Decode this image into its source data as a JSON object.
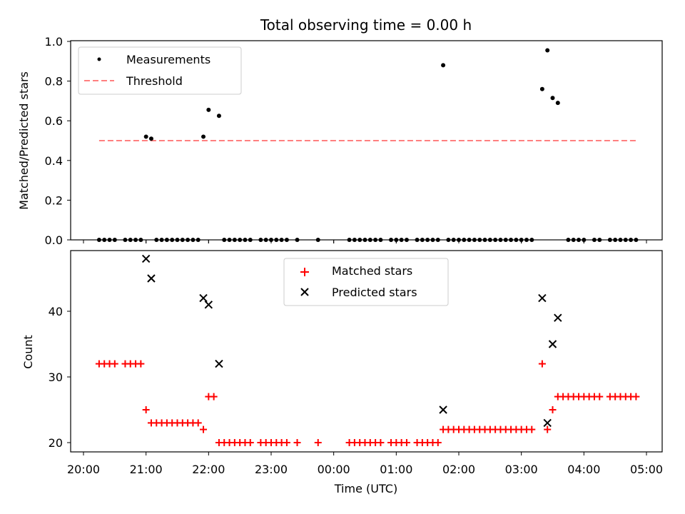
{
  "chart_data": [
    {
      "type": "scatter",
      "title": "Total observing time = 0.00 h",
      "xlabel": "",
      "ylabel": "Matched/Predicted stars",
      "xlim": [
        "20:00",
        "05:00"
      ],
      "ylim": [
        0.0,
        1.0
      ],
      "x_ticks": [
        "20:00",
        "21:00",
        "22:00",
        "23:00",
        "00:00",
        "01:00",
        "02:00",
        "03:00",
        "04:00",
        "05:00"
      ],
      "y_ticks": [
        "0.0",
        "0.2",
        "0.4",
        "0.6",
        "0.8",
        "1.0"
      ],
      "legend": {
        "placement": "top-left",
        "entries": [
          "Measurements",
          "Threshold"
        ]
      },
      "series": [
        {
          "name": "Measurements",
          "color": "#000000",
          "marker": "dot",
          "points": [
            [
              "20:15",
              0
            ],
            [
              "20:20",
              0
            ],
            [
              "20:25",
              0
            ],
            [
              "20:30",
              0
            ],
            [
              "20:40",
              0
            ],
            [
              "20:45",
              0
            ],
            [
              "20:50",
              0
            ],
            [
              "20:55",
              0
            ],
            [
              "21:00",
              0.52
            ],
            [
              "21:05",
              0.51
            ],
            [
              "21:10",
              0
            ],
            [
              "21:15",
              0
            ],
            [
              "21:20",
              0
            ],
            [
              "21:25",
              0
            ],
            [
              "21:30",
              0
            ],
            [
              "21:35",
              0
            ],
            [
              "21:40",
              0
            ],
            [
              "21:45",
              0
            ],
            [
              "21:50",
              0
            ],
            [
              "21:55",
              0.52
            ],
            [
              "22:00",
              0.655
            ],
            [
              "22:10",
              0.625
            ],
            [
              "22:15",
              0
            ],
            [
              "22:20",
              0
            ],
            [
              "22:25",
              0
            ],
            [
              "22:30",
              0
            ],
            [
              "22:35",
              0
            ],
            [
              "22:40",
              0
            ],
            [
              "22:50",
              0
            ],
            [
              "22:55",
              0
            ],
            [
              "23:00",
              0
            ],
            [
              "23:05",
              0
            ],
            [
              "23:10",
              0
            ],
            [
              "23:15",
              0
            ],
            [
              "23:25",
              0
            ],
            [
              "23:45",
              0
            ],
            [
              "00:15",
              0
            ],
            [
              "00:20",
              0
            ],
            [
              "00:25",
              0
            ],
            [
              "00:30",
              0
            ],
            [
              "00:35",
              0
            ],
            [
              "00:40",
              0
            ],
            [
              "00:45",
              0
            ],
            [
              "00:55",
              0
            ],
            [
              "01:00",
              0
            ],
            [
              "01:05",
              0
            ],
            [
              "01:10",
              0
            ],
            [
              "01:20",
              0
            ],
            [
              "01:25",
              0
            ],
            [
              "01:30",
              0
            ],
            [
              "01:35",
              0
            ],
            [
              "01:40",
              0
            ],
            [
              "01:45",
              0.88
            ],
            [
              "01:50",
              0
            ],
            [
              "01:55",
              0
            ],
            [
              "02:00",
              0
            ],
            [
              "02:05",
              0
            ],
            [
              "02:10",
              0
            ],
            [
              "02:15",
              0
            ],
            [
              "02:20",
              0
            ],
            [
              "02:25",
              0
            ],
            [
              "02:30",
              0
            ],
            [
              "02:35",
              0
            ],
            [
              "02:40",
              0
            ],
            [
              "02:45",
              0
            ],
            [
              "02:50",
              0
            ],
            [
              "02:55",
              0
            ],
            [
              "03:00",
              0
            ],
            [
              "03:05",
              0
            ],
            [
              "03:10",
              0
            ],
            [
              "03:20",
              0.76
            ],
            [
              "03:25",
              0.955
            ],
            [
              "03:30",
              0.715
            ],
            [
              "03:35",
              0.69
            ],
            [
              "03:45",
              0
            ],
            [
              "03:50",
              0
            ],
            [
              "03:55",
              0
            ],
            [
              "04:00",
              0
            ],
            [
              "04:10",
              0
            ],
            [
              "04:15",
              0
            ],
            [
              "04:25",
              0
            ],
            [
              "04:30",
              0
            ],
            [
              "04:35",
              0
            ],
            [
              "04:40",
              0
            ],
            [
              "04:45",
              0
            ],
            [
              "04:50",
              0
            ]
          ]
        },
        {
          "name": "Threshold",
          "color": "#ff7f7f",
          "style": "dashed-line",
          "points": [
            [
              "20:15",
              0.5
            ],
            [
              "04:50",
              0.5
            ]
          ]
        }
      ]
    },
    {
      "type": "scatter",
      "title": "",
      "xlabel": "Time (UTC)",
      "ylabel": "Count",
      "xlim": [
        "20:00",
        "05:00"
      ],
      "ylim": [
        19,
        49
      ],
      "x_ticks": [
        "20:00",
        "21:00",
        "22:00",
        "23:00",
        "00:00",
        "01:00",
        "02:00",
        "03:00",
        "04:00",
        "05:00"
      ],
      "y_ticks": [
        "20",
        "30",
        "40"
      ],
      "legend": {
        "placement": "top-center",
        "entries": [
          "Matched stars",
          "Predicted stars"
        ]
      },
      "series": [
        {
          "name": "Matched stars",
          "color": "#ff0000",
          "marker": "plus",
          "points": [
            [
              "20:15",
              32
            ],
            [
              "20:20",
              32
            ],
            [
              "20:25",
              32
            ],
            [
              "20:30",
              32
            ],
            [
              "20:40",
              32
            ],
            [
              "20:45",
              32
            ],
            [
              "20:50",
              32
            ],
            [
              "20:55",
              32
            ],
            [
              "21:00",
              25
            ],
            [
              "21:05",
              23
            ],
            [
              "21:10",
              23
            ],
            [
              "21:15",
              23
            ],
            [
              "21:20",
              23
            ],
            [
              "21:25",
              23
            ],
            [
              "21:30",
              23
            ],
            [
              "21:35",
              23
            ],
            [
              "21:40",
              23
            ],
            [
              "21:45",
              23
            ],
            [
              "21:50",
              23
            ],
            [
              "21:55",
              22
            ],
            [
              "22:00",
              27
            ],
            [
              "22:05",
              27
            ],
            [
              "22:10",
              20
            ],
            [
              "22:15",
              20
            ],
            [
              "22:20",
              20
            ],
            [
              "22:25",
              20
            ],
            [
              "22:30",
              20
            ],
            [
              "22:35",
              20
            ],
            [
              "22:40",
              20
            ],
            [
              "22:50",
              20
            ],
            [
              "22:55",
              20
            ],
            [
              "23:00",
              20
            ],
            [
              "23:05",
              20
            ],
            [
              "23:10",
              20
            ],
            [
              "23:15",
              20
            ],
            [
              "23:25",
              20
            ],
            [
              "23:45",
              20
            ],
            [
              "00:15",
              20
            ],
            [
              "00:20",
              20
            ],
            [
              "00:25",
              20
            ],
            [
              "00:30",
              20
            ],
            [
              "00:35",
              20
            ],
            [
              "00:40",
              20
            ],
            [
              "00:45",
              20
            ],
            [
              "00:55",
              20
            ],
            [
              "01:00",
              20
            ],
            [
              "01:05",
              20
            ],
            [
              "01:10",
              20
            ],
            [
              "01:20",
              20
            ],
            [
              "01:25",
              20
            ],
            [
              "01:30",
              20
            ],
            [
              "01:35",
              20
            ],
            [
              "01:40",
              20
            ],
            [
              "01:45",
              22
            ],
            [
              "01:50",
              22
            ],
            [
              "01:55",
              22
            ],
            [
              "02:00",
              22
            ],
            [
              "02:05",
              22
            ],
            [
              "02:10",
              22
            ],
            [
              "02:15",
              22
            ],
            [
              "02:20",
              22
            ],
            [
              "02:25",
              22
            ],
            [
              "02:30",
              22
            ],
            [
              "02:35",
              22
            ],
            [
              "02:40",
              22
            ],
            [
              "02:45",
              22
            ],
            [
              "02:50",
              22
            ],
            [
              "02:55",
              22
            ],
            [
              "03:00",
              22
            ],
            [
              "03:05",
              22
            ],
            [
              "03:10",
              22
            ],
            [
              "03:20",
              32
            ],
            [
              "03:25",
              22
            ],
            [
              "03:30",
              25
            ],
            [
              "03:35",
              27
            ],
            [
              "03:40",
              27
            ],
            [
              "03:45",
              27
            ],
            [
              "03:50",
              27
            ],
            [
              "03:55",
              27
            ],
            [
              "04:00",
              27
            ],
            [
              "04:05",
              27
            ],
            [
              "04:10",
              27
            ],
            [
              "04:15",
              27
            ],
            [
              "04:25",
              27
            ],
            [
              "04:30",
              27
            ],
            [
              "04:35",
              27
            ],
            [
              "04:40",
              27
            ],
            [
              "04:45",
              27
            ],
            [
              "04:50",
              27
            ]
          ]
        },
        {
          "name": "Predicted stars",
          "color": "#000000",
          "marker": "x",
          "points": [
            [
              "21:00",
              48
            ],
            [
              "21:05",
              45
            ],
            [
              "21:55",
              42
            ],
            [
              "22:00",
              41
            ],
            [
              "22:10",
              32
            ],
            [
              "01:45",
              25
            ],
            [
              "03:20",
              42
            ],
            [
              "03:25",
              23
            ],
            [
              "03:30",
              35
            ],
            [
              "03:35",
              39
            ]
          ]
        }
      ]
    }
  ]
}
